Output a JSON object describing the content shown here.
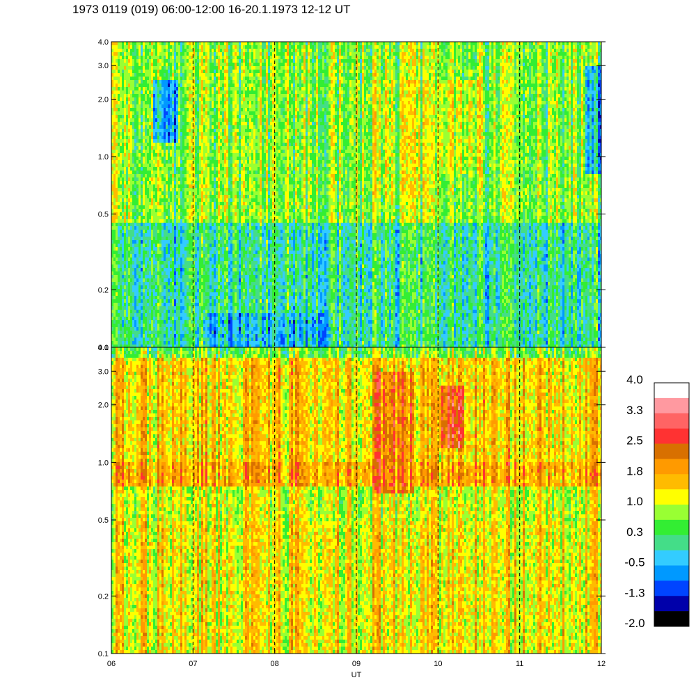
{
  "title": "1973 0119 (019) 06:00-12:00 16-20.1.1973  12-12 UT",
  "chart_data": {
    "type": "heatmap",
    "title": "1973 0119 (019) 06:00-12:00 16-20.1.1973  12-12 UT",
    "xlabel": "UT",
    "ylabel": "",
    "x_ticks": [
      "06",
      "07",
      "08",
      "09",
      "10",
      "11",
      "12"
    ],
    "x_range": [
      6,
      12
    ],
    "y_scale": "log",
    "y_range": [
      0.1,
      4.0
    ],
    "y_ticks": [
      "0.1",
      "0.2",
      "0.5",
      "1.0",
      "2.0",
      "3.0",
      "4.0"
    ],
    "hour_markers": [
      7,
      8,
      9,
      10,
      11
    ],
    "panels": [
      {
        "name": "upper",
        "dominant_level": 0.3,
        "features": [
          {
            "x_range": [
              6.0,
              12.0
            ],
            "y_range": [
              0.1,
              0.45
            ],
            "level": 0.0
          },
          {
            "x_range": [
              6.0,
              12.0
            ],
            "y_range": [
              0.45,
              4.0
            ],
            "level": 0.7
          },
          {
            "x_range": [
              9.1,
              9.9
            ],
            "y_range": [
              0.6,
              2.5
            ],
            "level": 0.9
          },
          {
            "x_range": [
              10.0,
              10.5
            ],
            "y_range": [
              0.8,
              2.5
            ],
            "level": 1.1
          },
          {
            "x_range": [
              6.5,
              6.8
            ],
            "y_range": [
              1.2,
              2.5
            ],
            "level": -0.6
          },
          {
            "x_range": [
              11.8,
              12.0
            ],
            "y_range": [
              0.8,
              3.0
            ],
            "level": -0.6
          },
          {
            "x_range": [
              7.1,
              8.7
            ],
            "y_range": [
              0.1,
              0.15
            ],
            "level": -0.5
          }
        ]
      },
      {
        "name": "lower",
        "dominant_level": 1.5,
        "features": [
          {
            "x_range": [
              6.0,
              12.0
            ],
            "y_range": [
              0.1,
              0.5
            ],
            "level": 1.3
          },
          {
            "x_range": [
              6.0,
              12.0
            ],
            "y_range": [
              0.5,
              0.75
            ],
            "level": 1.1
          },
          {
            "x_range": [
              6.0,
              12.0
            ],
            "y_range": [
              0.75,
              1.0
            ],
            "level": 1.9
          },
          {
            "x_range": [
              6.0,
              12.0
            ],
            "y_range": [
              1.0,
              4.0
            ],
            "level": 1.5
          },
          {
            "x_range": [
              9.2,
              9.7
            ],
            "y_range": [
              0.7,
              3.0
            ],
            "level": 2.2
          },
          {
            "x_range": [
              10.0,
              10.3
            ],
            "y_range": [
              1.2,
              2.5
            ],
            "level": 2.6
          },
          {
            "x_range": [
              6.0,
              12.0
            ],
            "y_range": [
              3.5,
              4.0
            ],
            "level": 0.6
          }
        ]
      }
    ],
    "colorbar": {
      "labels": [
        "4.0",
        "3.3",
        "2.5",
        "1.8",
        "1.0",
        "0.3",
        "-0.5",
        "-1.3",
        "-2.0"
      ],
      "colors": [
        "#ffffff",
        "#ff99a0",
        "#ff6464",
        "#ff3232",
        "#d87000",
        "#ff9a00",
        "#ffbb00",
        "#ffff00",
        "#99ff33",
        "#33ee33",
        "#44dd88",
        "#33ccff",
        "#0099ff",
        "#0044ff",
        "#0000aa",
        "#000000"
      ],
      "min": -2.0,
      "max": 4.0
    }
  }
}
